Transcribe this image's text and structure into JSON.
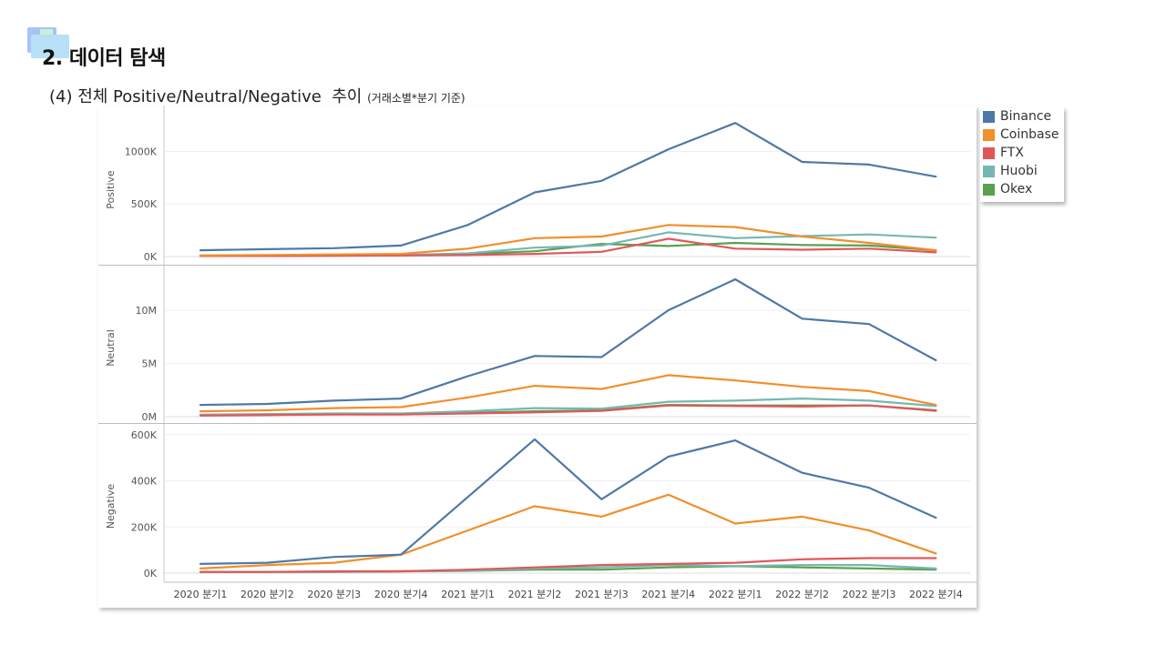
{
  "slide": {
    "section_title": "2. 데이터 탐색",
    "subtitle_main": "(4) 전체 Positive/Neutral/Negative  추이 ",
    "subtitle_note": "(거래소별*분기 기준)"
  },
  "legend": {
    "items": [
      {
        "label": "Binance",
        "color": "#4e79a7"
      },
      {
        "label": "Coinbase",
        "color": "#f28e2b"
      },
      {
        "label": "FTX",
        "color": "#e15759"
      },
      {
        "label": "Huobi",
        "color": "#76b7b2"
      },
      {
        "label": "Okex",
        "color": "#59a14f"
      }
    ]
  },
  "chart_data": {
    "type": "line",
    "categories": [
      "2020 분기1",
      "2020 분기2",
      "2020 분기3",
      "2020 분기4",
      "2021 분기1",
      "2021 분기2",
      "2021 분기3",
      "2021 분기4",
      "2022 분기1",
      "2022 분기2",
      "2022 분기3",
      "2022 분기4"
    ],
    "grid": true,
    "legend_position": "right",
    "panels": [
      {
        "ylabel": "Positive",
        "ylim": [
          0,
          1350000
        ],
        "ticks": [
          {
            "value": 0,
            "label": "0K"
          },
          {
            "value": 500000,
            "label": "500K"
          },
          {
            "value": 1000000,
            "label": "1000K"
          }
        ],
        "series": [
          {
            "name": "Binance",
            "values": [
              60000,
              70000,
              80000,
              105000,
              300000,
              610000,
              720000,
              1020000,
              1270000,
              900000,
              875000,
              760000
            ]
          },
          {
            "name": "Coinbase",
            "values": [
              10000,
              15000,
              20000,
              25000,
              75000,
              175000,
              190000,
              300000,
              280000,
              190000,
              130000,
              60000
            ]
          },
          {
            "name": "FTX",
            "values": [
              5000,
              5000,
              8000,
              10000,
              15000,
              25000,
              45000,
              170000,
              75000,
              65000,
              75000,
              40000
            ]
          },
          {
            "name": "Huobi",
            "values": [
              10000,
              10000,
              12000,
              15000,
              30000,
              85000,
              105000,
              230000,
              175000,
              195000,
              210000,
              180000
            ]
          },
          {
            "name": "Okex",
            "values": [
              5000,
              5000,
              10000,
              12000,
              25000,
              50000,
              120000,
              100000,
              130000,
              110000,
              105000,
              60000
            ]
          }
        ]
      },
      {
        "ylabel": "Neutral",
        "ylim": [
          0,
          13500000
        ],
        "ticks": [
          {
            "value": 0,
            "label": "0M"
          },
          {
            "value": 5000000,
            "label": "5M"
          },
          {
            "value": 10000000,
            "label": "10M"
          }
        ],
        "series": [
          {
            "name": "Binance",
            "values": [
              1100000,
              1200000,
              1500000,
              1700000,
              3800000,
              5700000,
              5600000,
              10000000,
              12900000,
              9200000,
              8700000,
              5300000
            ]
          },
          {
            "name": "Coinbase",
            "values": [
              500000,
              600000,
              800000,
              900000,
              1800000,
              2900000,
              2600000,
              3900000,
              3400000,
              2800000,
              2400000,
              1100000
            ]
          },
          {
            "name": "FTX",
            "values": [
              100000,
              150000,
              200000,
              200000,
              300000,
              400000,
              550000,
              1050000,
              1000000,
              950000,
              1050000,
              550000
            ]
          },
          {
            "name": "Huobi",
            "values": [
              200000,
              250000,
              300000,
              300000,
              500000,
              800000,
              750000,
              1400000,
              1500000,
              1700000,
              1500000,
              1000000
            ]
          },
          {
            "name": "Okex",
            "values": [
              150000,
              150000,
              250000,
              250000,
              350000,
              500000,
              600000,
              1100000,
              1050000,
              1050000,
              1050000,
              600000
            ]
          }
        ]
      },
      {
        "ylabel": "Negative",
        "ylim": [
          0,
          615000
        ],
        "ticks": [
          {
            "value": 0,
            "label": "0K"
          },
          {
            "value": 200000,
            "label": "200K"
          },
          {
            "value": 400000,
            "label": "400K"
          },
          {
            "value": 600000,
            "label": "600K"
          }
        ],
        "series": [
          {
            "name": "Binance",
            "values": [
              40000,
              45000,
              70000,
              80000,
              330000,
              580000,
              320000,
              505000,
              575000,
              435000,
              370000,
              240000
            ]
          },
          {
            "name": "Coinbase",
            "values": [
              20000,
              35000,
              45000,
              80000,
              185000,
              290000,
              245000,
              340000,
              215000,
              245000,
              185000,
              85000
            ]
          },
          {
            "name": "FTX",
            "values": [
              5000,
              5000,
              8000,
              8000,
              15000,
              25000,
              35000,
              40000,
              45000,
              60000,
              65000,
              65000
            ]
          },
          {
            "name": "Huobi",
            "values": [
              5000,
              5000,
              5000,
              8000,
              10000,
              20000,
              25000,
              35000,
              30000,
              35000,
              35000,
              20000
            ]
          },
          {
            "name": "Okex",
            "values": [
              5000,
              5000,
              5000,
              8000,
              10000,
              15000,
              15000,
              25000,
              30000,
              25000,
              20000,
              15000
            ]
          }
        ]
      }
    ]
  }
}
